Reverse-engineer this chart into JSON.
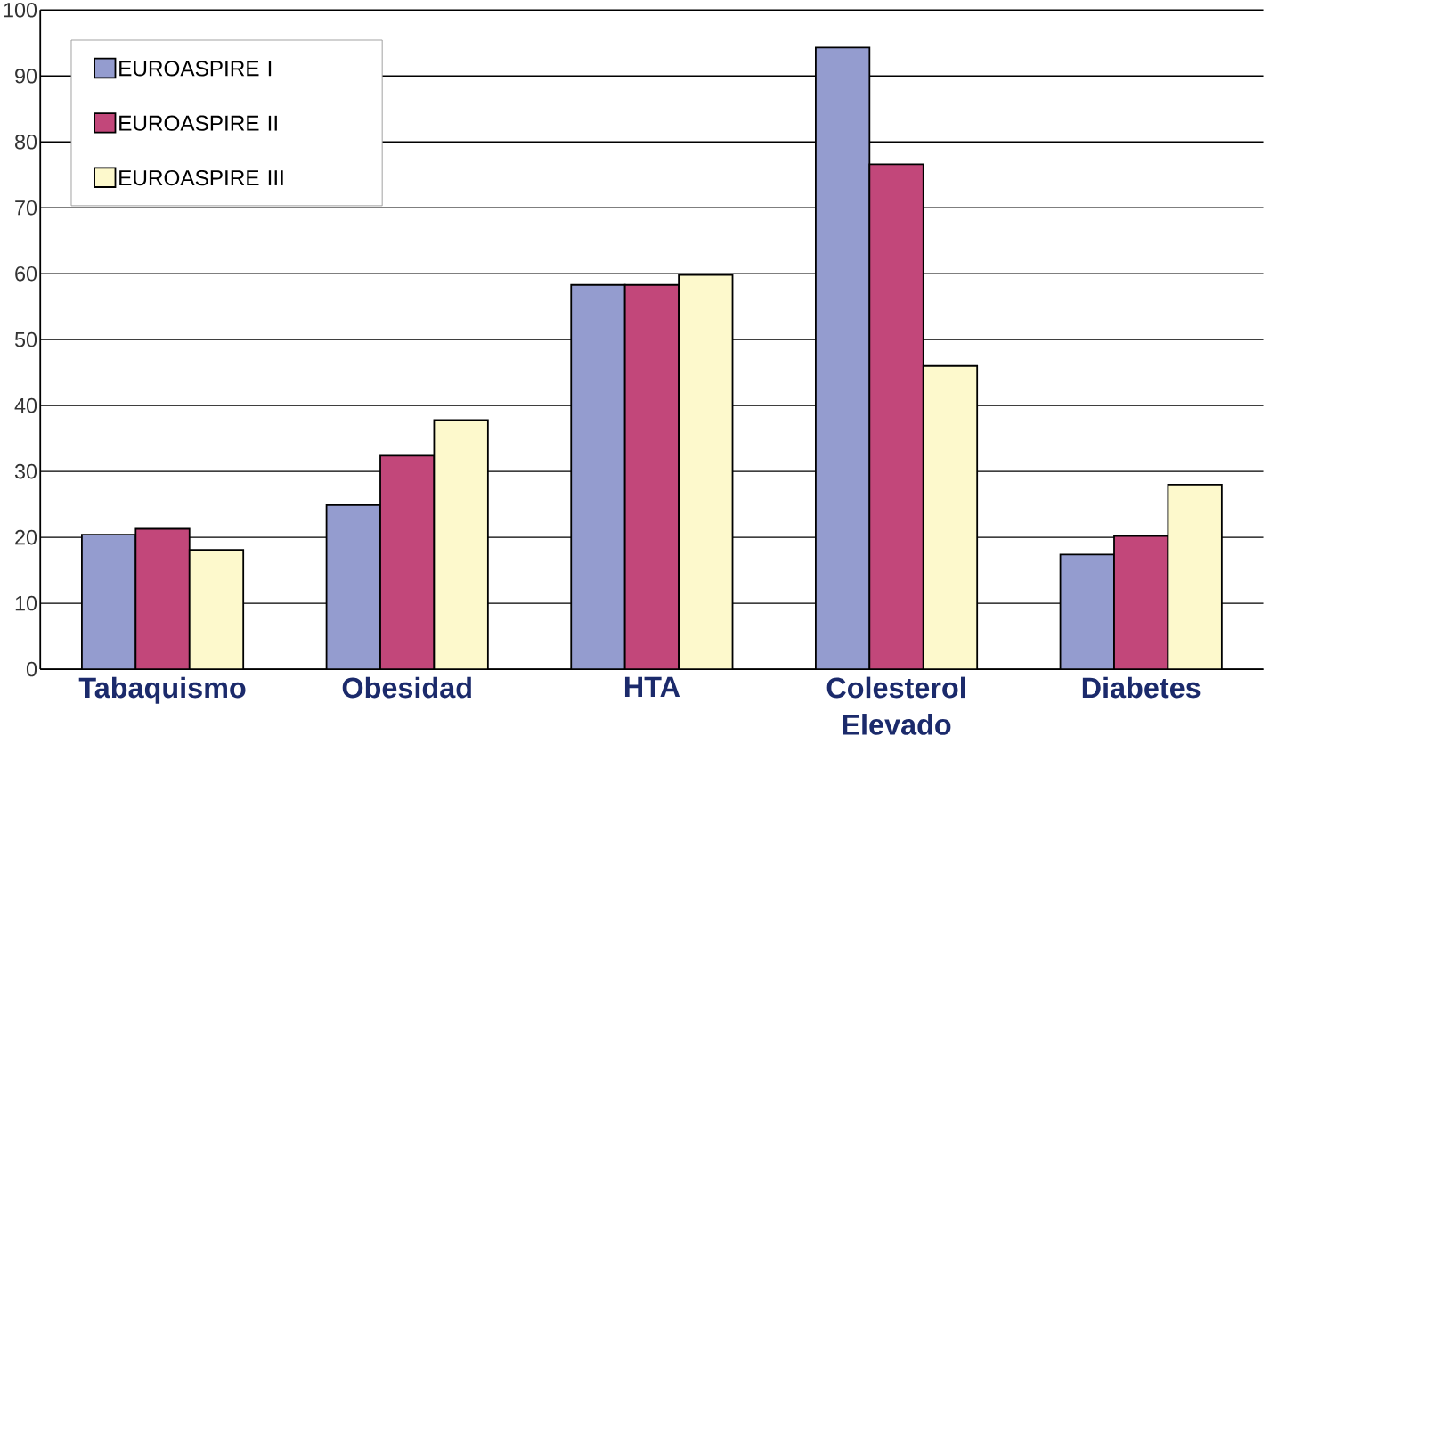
{
  "chart_data": {
    "type": "bar",
    "categories": [
      "Tabaquismo",
      "Obesidad",
      "HTA",
      "Colesterol Elevado",
      "Diabetes"
    ],
    "series": [
      {
        "name": "EUROASPIRE I",
        "color": "#949ccf",
        "values": [
          20.4,
          24.9,
          58.3,
          94.3,
          17.4
        ]
      },
      {
        "name": "EUROASPIRE II",
        "color": "#c2477a",
        "values": [
          21.3,
          32.4,
          58.3,
          76.6,
          20.2
        ]
      },
      {
        "name": "EUROASPIRE III",
        "color": "#fdf9cc",
        "values": [
          18.1,
          37.8,
          59.8,
          46.0,
          28.0
        ]
      }
    ],
    "ylim": [
      0,
      100
    ],
    "yticks": [
      0,
      10,
      20,
      30,
      40,
      50,
      60,
      70,
      80,
      90,
      100
    ],
    "grid": "y",
    "legend": "top left"
  }
}
